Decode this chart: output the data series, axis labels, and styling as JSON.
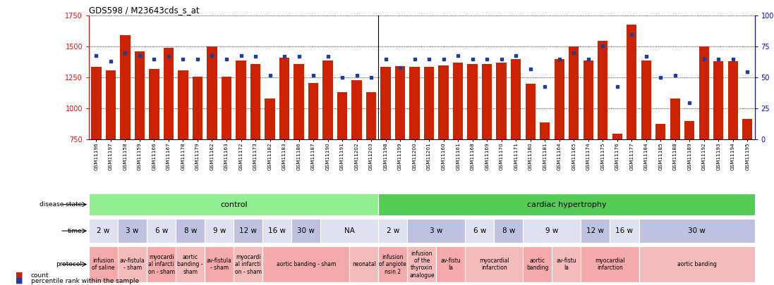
{
  "title": "GDS598 / M23643cds_s_at",
  "samples": [
    "GSM11196",
    "GSM11197",
    "GSM11158",
    "GSM11159",
    "GSM11166",
    "GSM11167",
    "GSM11178",
    "GSM11179",
    "GSM11162",
    "GSM11163",
    "GSM11172",
    "GSM11173",
    "GSM11182",
    "GSM11183",
    "GSM11186",
    "GSM11187",
    "GSM11190",
    "GSM11191",
    "GSM11202",
    "GSM11203",
    "GSM11198",
    "GSM11199",
    "GSM11200",
    "GSM11201",
    "GSM11160",
    "GSM11161",
    "GSM11168",
    "GSM11169",
    "GSM11170",
    "GSM11171",
    "GSM11180",
    "GSM11181",
    "GSM11164",
    "GSM11165",
    "GSM11174",
    "GSM11175",
    "GSM11176",
    "GSM11177",
    "GSM11184",
    "GSM11185",
    "GSM11188",
    "GSM11189",
    "GSM11192",
    "GSM11193",
    "GSM11194",
    "GSM11195"
  ],
  "counts": [
    1340,
    1310,
    1590,
    1460,
    1320,
    1490,
    1310,
    1255,
    1500,
    1260,
    1390,
    1360,
    1080,
    1410,
    1360,
    1205,
    1390,
    1135,
    1230,
    1135,
    1340,
    1345,
    1340,
    1340,
    1350,
    1370,
    1360,
    1360,
    1370,
    1400,
    1200,
    890,
    1400,
    1500,
    1390,
    1545,
    800,
    1680,
    1390,
    875,
    1080,
    900,
    1500,
    1380,
    1380,
    920
  ],
  "percentiles": [
    68,
    63,
    70,
    68,
    65,
    67,
    65,
    65,
    68,
    65,
    68,
    67,
    52,
    67,
    67,
    52,
    67,
    50,
    52,
    50,
    65,
    58,
    65,
    65,
    65,
    68,
    65,
    65,
    65,
    68,
    57,
    43,
    65,
    70,
    65,
    76,
    43,
    85,
    67,
    50,
    52,
    30,
    65,
    65,
    65,
    55
  ],
  "ylim_left": [
    750,
    1750
  ],
  "ylim_right": [
    0,
    100
  ],
  "bar_color": "#CC2200",
  "dot_color": "#1a3fa0",
  "yticks_left": [
    750,
    1000,
    1250,
    1500,
    1750
  ],
  "yticks_right": [
    0,
    25,
    50,
    75,
    100
  ],
  "ytick_labels_right": [
    "0",
    "25",
    "50",
    "75",
    "100%"
  ],
  "disease_state_regions": [
    {
      "label": "control",
      "start": 0,
      "end": 20,
      "color": "#90EE90"
    },
    {
      "label": "cardiac hypertrophy",
      "start": 20,
      "end": 46,
      "color": "#55CC55"
    }
  ],
  "time_regions": [
    {
      "label": "2 w",
      "start": 0,
      "end": 2,
      "color": "#E0E0F0"
    },
    {
      "label": "3 w",
      "start": 2,
      "end": 4,
      "color": "#C0C0E0"
    },
    {
      "label": "6 w",
      "start": 4,
      "end": 6,
      "color": "#E0E0F0"
    },
    {
      "label": "8 w",
      "start": 6,
      "end": 8,
      "color": "#C0C0E0"
    },
    {
      "label": "9 w",
      "start": 8,
      "end": 10,
      "color": "#E0E0F0"
    },
    {
      "label": "12 w",
      "start": 10,
      "end": 12,
      "color": "#C0C0E0"
    },
    {
      "label": "16 w",
      "start": 12,
      "end": 14,
      "color": "#E0E0F0"
    },
    {
      "label": "30 w",
      "start": 14,
      "end": 16,
      "color": "#C0C0E0"
    },
    {
      "label": "NA",
      "start": 16,
      "end": 20,
      "color": "#E0E0F0"
    },
    {
      "label": "2 w",
      "start": 20,
      "end": 22,
      "color": "#E0E0F0"
    },
    {
      "label": "3 w",
      "start": 22,
      "end": 26,
      "color": "#C0C0E0"
    },
    {
      "label": "6 w",
      "start": 26,
      "end": 28,
      "color": "#E0E0F0"
    },
    {
      "label": "8 w",
      "start": 28,
      "end": 30,
      "color": "#C0C0E0"
    },
    {
      "label": "9 w",
      "start": 30,
      "end": 34,
      "color": "#E0E0F0"
    },
    {
      "label": "12 w",
      "start": 34,
      "end": 36,
      "color": "#C0C0E0"
    },
    {
      "label": "16 w",
      "start": 36,
      "end": 38,
      "color": "#E0E0F0"
    },
    {
      "label": "30 w",
      "start": 38,
      "end": 46,
      "color": "#C0C0E0"
    }
  ],
  "protocol_regions": [
    {
      "label": "infusion\nof saline",
      "start": 0,
      "end": 2,
      "color": "#F4AAAA"
    },
    {
      "label": "av-fistula\n- sham",
      "start": 2,
      "end": 4,
      "color": "#F4BBBB"
    },
    {
      "label": "myocardi\nal infarcti\non - sham",
      "start": 4,
      "end": 6,
      "color": "#F4AAAA"
    },
    {
      "label": "aortic\nbanding -\nsham",
      "start": 6,
      "end": 8,
      "color": "#F4BBBB"
    },
    {
      "label": "av-fistula\n- sham",
      "start": 8,
      "end": 10,
      "color": "#F4AAAA"
    },
    {
      "label": "myocardi\nal infarcti\non - sham",
      "start": 10,
      "end": 12,
      "color": "#F4BBBB"
    },
    {
      "label": "aortic banding - sham",
      "start": 12,
      "end": 18,
      "color": "#F4AAAA"
    },
    {
      "label": "neonatal",
      "start": 18,
      "end": 20,
      "color": "#F4BBBB"
    },
    {
      "label": "infusion\nof angiote\nnsin 2",
      "start": 20,
      "end": 22,
      "color": "#F4AAAA"
    },
    {
      "label": "infusion\nof the\nthyroxin\nanalogue",
      "start": 22,
      "end": 24,
      "color": "#F4BBBB"
    },
    {
      "label": "av-fistu\nla",
      "start": 24,
      "end": 26,
      "color": "#F4AAAA"
    },
    {
      "label": "myocardial\ninfarction",
      "start": 26,
      "end": 30,
      "color": "#F4BBBB"
    },
    {
      "label": "aortic\nbanding",
      "start": 30,
      "end": 32,
      "color": "#F4AAAA"
    },
    {
      "label": "av-fistu\nla",
      "start": 32,
      "end": 34,
      "color": "#F4BBBB"
    },
    {
      "label": "myocardial\ninfarction",
      "start": 34,
      "end": 38,
      "color": "#F4AAAA"
    },
    {
      "label": "aortic banding",
      "start": 38,
      "end": 46,
      "color": "#F4BBBB"
    }
  ],
  "fig_width": 10.97,
  "fig_height": 4.05,
  "dpi": 100
}
